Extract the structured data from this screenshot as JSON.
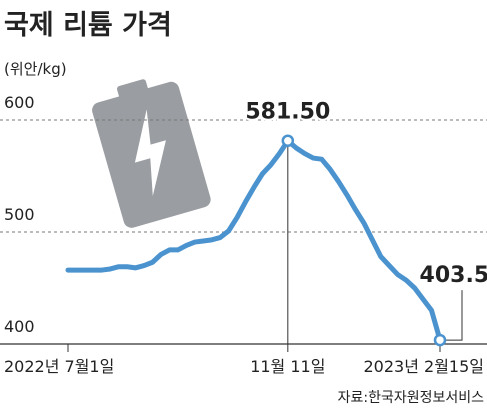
{
  "chart_data": {
    "type": "line",
    "title": "국제 리튬 가격",
    "y_label": "(위안/kg)",
    "source": "자료:한국자원정보서비스",
    "categories": [
      "2022년 7월1일",
      null,
      null,
      null,
      null,
      null,
      null,
      null,
      null,
      null,
      null,
      null,
      null,
      null,
      null,
      null,
      null,
      null,
      null,
      null,
      null,
      null,
      null,
      null,
      null,
      null,
      "11월 11일",
      null,
      null,
      null,
      null,
      null,
      null,
      null,
      null,
      null,
      null,
      null,
      null,
      null,
      null,
      null,
      null,
      null,
      "2023년 2월15일"
    ],
    "series": [
      {
        "color": "#4b93cf",
        "values": [
          466,
          466,
          466,
          466,
          466,
          467,
          469,
          469,
          468,
          470,
          473,
          480,
          484,
          484,
          488,
          491,
          492,
          493,
          495,
          501,
          513,
          527,
          540,
          552,
          560,
          570,
          581.5,
          575,
          570,
          566,
          565,
          556,
          545,
          533,
          520,
          508,
          493,
          478,
          470,
          462,
          457,
          450,
          440,
          430,
          403.5
        ],
        "value_labels": [
          null,
          null,
          null,
          null,
          null,
          null,
          null,
          null,
          null,
          null,
          null,
          null,
          null,
          null,
          null,
          null,
          null,
          null,
          null,
          null,
          null,
          null,
          null,
          null,
          null,
          null,
          "581.50",
          null,
          null,
          null,
          null,
          null,
          null,
          null,
          null,
          null,
          null,
          null,
          null,
          null,
          null,
          null,
          null,
          null,
          "403.50"
        ]
      }
    ],
    "ylim": [
      400,
      600
    ],
    "yticks": [
      400,
      500,
      600
    ],
    "grid": true
  }
}
